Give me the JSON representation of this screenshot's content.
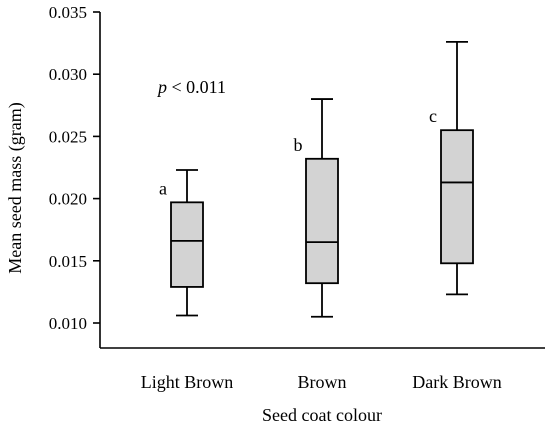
{
  "chart_data": {
    "type": "box",
    "xlabel": "Seed coat colour",
    "ylabel": "Mean seed mass (gram)",
    "ylim": [
      0.008,
      0.035
    ],
    "yticks": [
      0.01,
      0.015,
      0.02,
      0.025,
      0.03,
      0.035
    ],
    "ytick_labels": [
      "0.010",
      "0.015",
      "0.020",
      "0.025",
      "0.030",
      "0.035"
    ],
    "categories": [
      "Light Brown",
      "Brown",
      "Dark Brown"
    ],
    "box_fill": "#d3d3d3",
    "grid": false,
    "annotation": {
      "prefix": "p",
      "text": " < 0.011"
    },
    "boxes": [
      {
        "category": "Light Brown",
        "whisker_low": 0.0106,
        "q1": 0.0129,
        "median": 0.0166,
        "q3": 0.0197,
        "whisker_high": 0.0223,
        "letter": "a"
      },
      {
        "category": "Brown",
        "whisker_low": 0.0105,
        "q1": 0.0132,
        "median": 0.0165,
        "q3": 0.0232,
        "whisker_high": 0.028,
        "letter": "b"
      },
      {
        "category": "Dark Brown",
        "whisker_low": 0.0123,
        "q1": 0.0148,
        "median": 0.0213,
        "q3": 0.0255,
        "whisker_high": 0.0326,
        "letter": "c"
      }
    ]
  }
}
